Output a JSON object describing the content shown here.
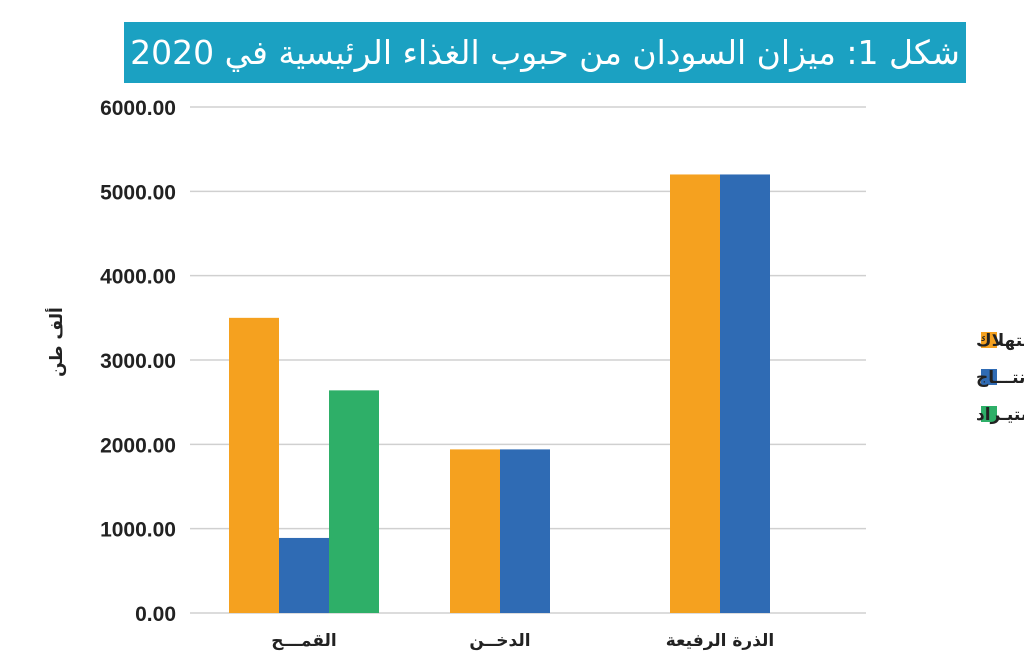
{
  "chart_data": {
    "type": "bar",
    "title": "شكل 1: ميزان السودان من حبوب الغذاء الرئيسية في 2020",
    "ylabel": "ألف طن",
    "xlabel": "",
    "ylim": [
      0,
      6000
    ],
    "yticks": [
      "0.00",
      "1000.00",
      "2000.00",
      "3000.00",
      "4000.00",
      "5000.00",
      "6000.00"
    ],
    "categories": [
      "القمـــح",
      "الدخــن",
      "الذرة الرفيعة"
    ],
    "series": [
      {
        "name": "الإستهلاك",
        "color": "#f5a11f",
        "values": [
          3500,
          1940,
          5200
        ]
      },
      {
        "name": "الإنتـــاج",
        "color": "#2f6bb4",
        "values": [
          890,
          1940,
          5200
        ]
      },
      {
        "name": "الإستيـراد",
        "color": "#2eaf68",
        "values": [
          2640,
          0,
          0
        ]
      }
    ],
    "grid": true,
    "legend": "right"
  }
}
